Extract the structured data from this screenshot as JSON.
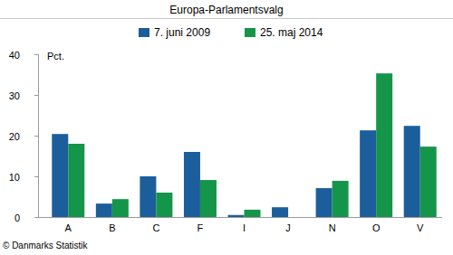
{
  "chart_data": {
    "type": "bar",
    "title": "Europa-Parlamentsvalg",
    "y_label": "Pct.",
    "annotations": [
      "© Danmarks Statistik"
    ],
    "categories": [
      "A",
      "B",
      "C",
      "F",
      "I",
      "J",
      "N",
      "O",
      "V"
    ],
    "series": [
      {
        "name": "7. juni 2009",
        "color": "#1b5e9b",
        "values": [
          20.4,
          3.3,
          10.0,
          16.0,
          0.5,
          2.4,
          7.1,
          21.3,
          22.4
        ]
      },
      {
        "name": "25. maj 2014",
        "color": "#15954a",
        "values": [
          18.0,
          4.4,
          6.0,
          9.1,
          1.8,
          null,
          8.9,
          35.3,
          17.3
        ]
      }
    ],
    "ylim": [
      0,
      40
    ],
    "yticks": [
      0,
      10,
      20,
      30,
      40
    ],
    "grid": false,
    "legend": "top"
  }
}
